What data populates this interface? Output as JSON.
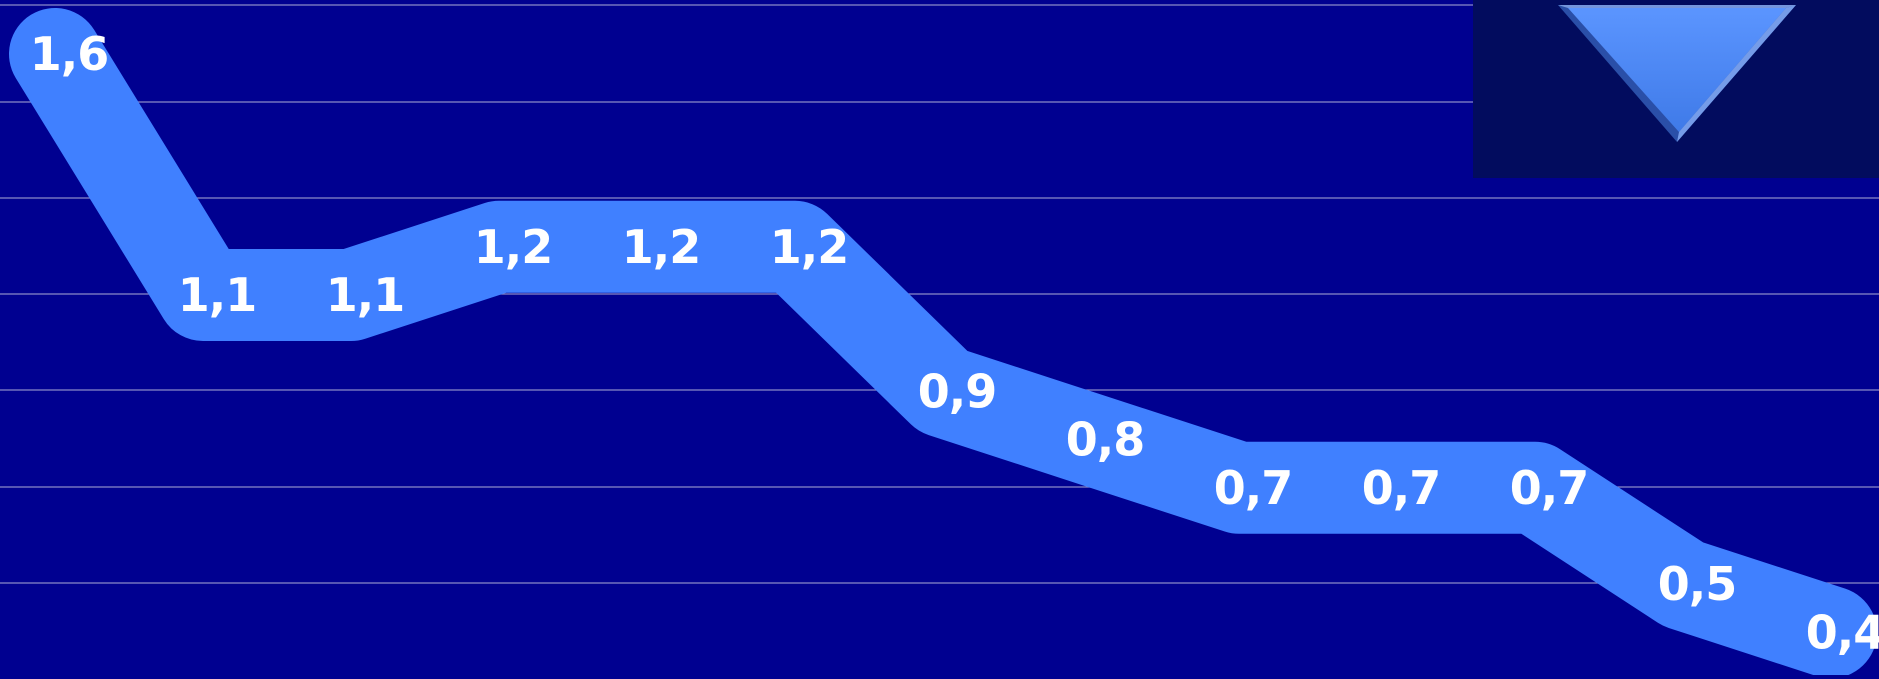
{
  "chart_data": {
    "type": "line",
    "title": "",
    "xlabel": "",
    "ylabel": "",
    "grid": true,
    "ylim": [
      0.0,
      1.6
    ],
    "series": [
      {
        "values": [
          1.6,
          1.1,
          1.1,
          1.2,
          1.2,
          1.2,
          0.9,
          0.8,
          0.7,
          0.7,
          0.7,
          0.5,
          0.4
        ],
        "labels": [
          "1,6",
          "1,1",
          "1,1",
          "1,2",
          "1,2",
          "1,2",
          "0,9",
          "0,8",
          "0,7",
          "0,7",
          "0,7",
          "0,5",
          "0,4"
        ]
      }
    ]
  },
  "colors": {
    "background": "#000090",
    "line": "#4080ff",
    "gridline": "#8a8ac8",
    "label": "#ffffff",
    "badge_background": "#020c5e",
    "badge_icon": "#4a86f0"
  },
  "trend_indicator": {
    "icon": "down-triangle-icon",
    "direction": "down"
  }
}
